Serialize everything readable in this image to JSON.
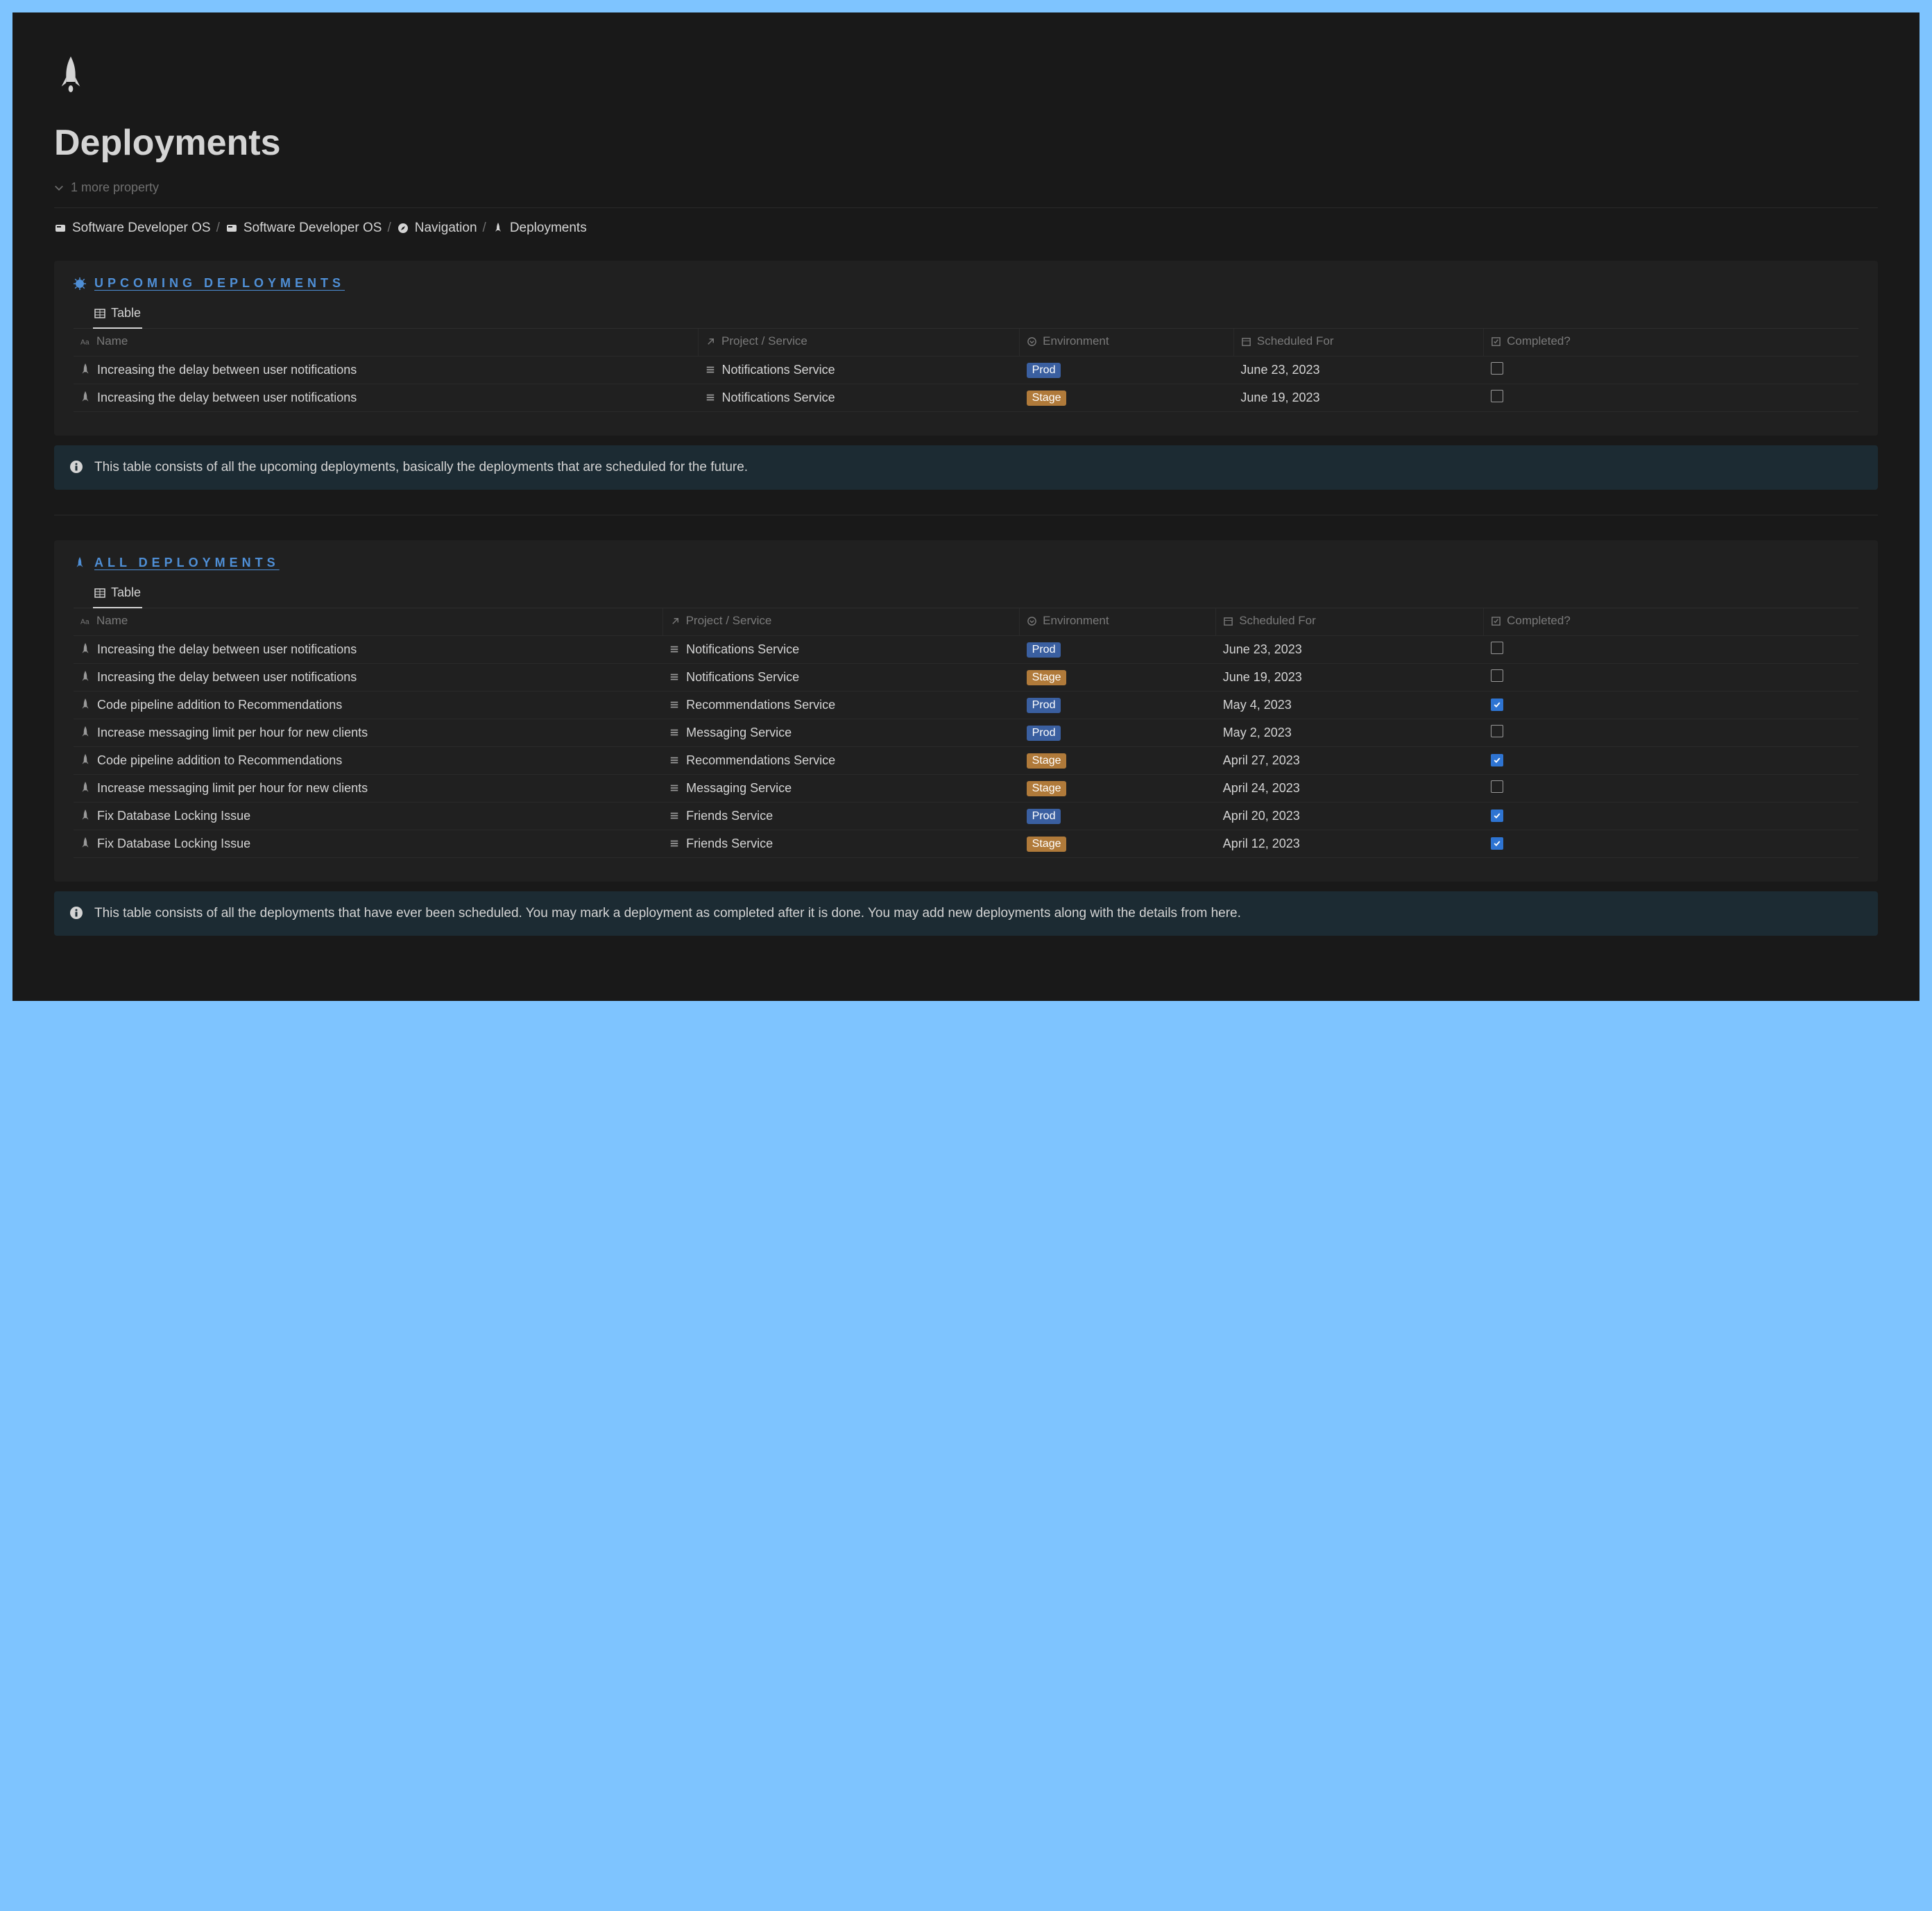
{
  "colors": {
    "page_bg": "#191919",
    "outer_bg": "#7ec4ff",
    "panel_bg": "#202020",
    "callout_bg": "#1c2b33",
    "text": "#d4d4d4",
    "muted": "#7a7a7a",
    "heading_blue": "#4f8fd6",
    "border": "#2a2a2a",
    "badge_prod": "#3a5fa0",
    "badge_stage": "#b07a3a",
    "checkbox_checked": "#2e74d2"
  },
  "page": {
    "title": "Deployments",
    "more_properties": "1 more property"
  },
  "breadcrumb": {
    "items": [
      {
        "label": "Software Developer OS",
        "icon": "card"
      },
      {
        "label": "Software Developer OS",
        "icon": "card"
      },
      {
        "label": "Navigation",
        "icon": "compass"
      },
      {
        "label": "Deployments",
        "icon": "rocket"
      }
    ]
  },
  "sections": {
    "upcoming": {
      "heading": "UPCOMING DEPLOYMENTS",
      "tab": "Table",
      "columns": {
        "name": "Name",
        "project": "Project / Service",
        "env": "Environment",
        "scheduled": "Scheduled For",
        "completed": "Completed?"
      },
      "rows": [
        {
          "name": "Increasing the delay between user notifications",
          "service": "Notifications Service",
          "env": "Prod",
          "env_color": "#3a5fa0",
          "date": "June 23, 2023",
          "completed": false
        },
        {
          "name": "Increasing the delay between user notifications",
          "service": "Notifications Service",
          "env": "Stage",
          "env_color": "#b07a3a",
          "date": "June 19, 2023",
          "completed": false
        }
      ],
      "callout": "This table consists of all the upcoming deployments, basically the deployments that are scheduled for the future."
    },
    "all": {
      "heading": "ALL DEPLOYMENTS",
      "tab": "Table",
      "columns": {
        "name": "Name",
        "project": "Project / Service",
        "env": "Environment",
        "scheduled": "Scheduled For",
        "completed": "Completed?"
      },
      "rows": [
        {
          "name": "Increasing the delay between user notifications",
          "service": "Notifications Service",
          "env": "Prod",
          "env_color": "#3a5fa0",
          "date": "June 23, 2023",
          "completed": false
        },
        {
          "name": "Increasing the delay between user notifications",
          "service": "Notifications Service",
          "env": "Stage",
          "env_color": "#b07a3a",
          "date": "June 19, 2023",
          "completed": false
        },
        {
          "name": "Code pipeline addition to Recommendations",
          "service": "Recommendations Service",
          "env": "Prod",
          "env_color": "#3a5fa0",
          "date": "May 4, 2023",
          "completed": true
        },
        {
          "name": "Increase messaging limit per hour for new clients",
          "service": "Messaging Service",
          "env": "Prod",
          "env_color": "#3a5fa0",
          "date": "May 2, 2023",
          "completed": false
        },
        {
          "name": "Code pipeline addition to Recommendations",
          "service": "Recommendations Service",
          "env": "Stage",
          "env_color": "#b07a3a",
          "date": "April 27, 2023",
          "completed": true
        },
        {
          "name": "Increase messaging limit per hour for new clients",
          "service": "Messaging Service",
          "env": "Stage",
          "env_color": "#b07a3a",
          "date": "April 24, 2023",
          "completed": false
        },
        {
          "name": "Fix Database Locking Issue",
          "service": "Friends Service",
          "env": "Prod",
          "env_color": "#3a5fa0",
          "date": "April 20, 2023",
          "completed": true
        },
        {
          "name": "Fix Database Locking Issue",
          "service": "Friends Service",
          "env": "Stage",
          "env_color": "#b07a3a",
          "date": "April 12, 2023",
          "completed": true
        }
      ],
      "callout": "This table consists of all the deployments that have ever been scheduled. You may mark a deployment as completed after it is done. You may add new deployments along with the details from here."
    }
  },
  "layout": {
    "col_widths_pct": {
      "name": 35,
      "project": 18,
      "env": 12,
      "scheduled": 14,
      "completed": 21
    }
  }
}
